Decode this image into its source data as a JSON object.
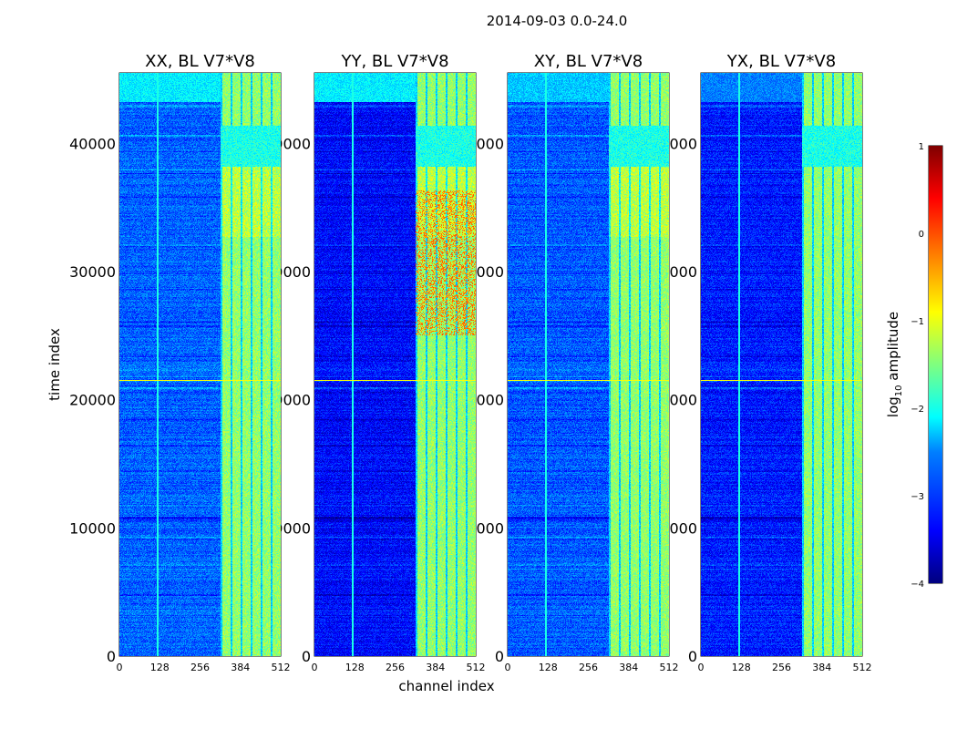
{
  "chart_data": {
    "type": "heatmap",
    "suptitle": "2014-09-03 0.0-24.0",
    "xlabel": "channel index",
    "ylabel": "time index",
    "xlim": [
      0,
      512
    ],
    "ylim": [
      0,
      45500
    ],
    "xticks": [
      0,
      128,
      256,
      384,
      512
    ],
    "xtick_labels": [
      "0",
      "128",
      "256",
      "384",
      "512"
    ],
    "yticks": [
      0,
      10000,
      20000,
      30000,
      40000
    ],
    "ytick_labels": [
      "0",
      "10000",
      "20000",
      "30000",
      "40000"
    ],
    "panels": [
      {
        "title": "XX, BL V7*V8"
      },
      {
        "title": "YY, BL V7*V8"
      },
      {
        "title": "XY, BL V7*V8"
      },
      {
        "title": "YX, BL V7*V8"
      }
    ],
    "colorbar": {
      "label_prefix": "log",
      "label_sub": "10",
      "label_suffix": " amplitude",
      "range": [
        -4,
        1
      ],
      "ticks": [
        -4,
        -3,
        -2,
        -1,
        0,
        1
      ],
      "tick_labels": [
        "−4",
        "−3",
        "−2",
        "−1",
        "0",
        "1"
      ],
      "colormap": "jet"
    }
  }
}
